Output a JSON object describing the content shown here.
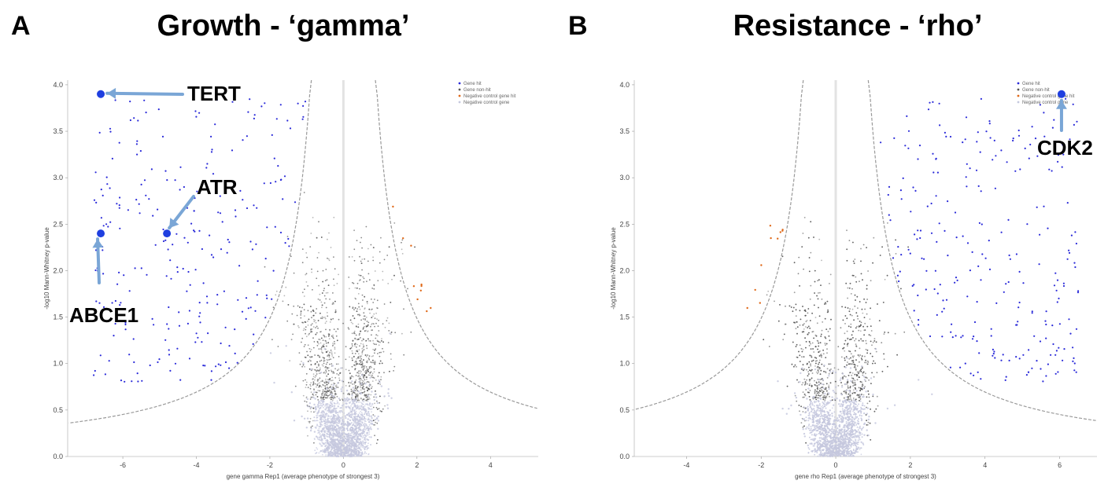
{
  "panels": [
    {
      "letter": "A",
      "title": "Growth - ‘gamma’"
    },
    {
      "letter": "B",
      "title": "Resistance - ‘rho’"
    }
  ],
  "legend_items": [
    "Gene hit",
    "Gene non-hit",
    "Negative control gene hit",
    "Negative control gene"
  ],
  "colors": {
    "hit": "#2b2bd9",
    "nonhit": "#555555",
    "neg_hit": "#e06a1a",
    "neg": "#c5c8de",
    "highlight": "#1f3fe0",
    "arrow": "#7aa6d6",
    "threshold": "#999999"
  },
  "chart_data": [
    {
      "type": "scatter",
      "title": "Growth - ‘gamma’",
      "xlabel": "gene gamma Rep1 (average phenotype of strongest 3)",
      "ylabel": "-log10 Mann-Whitney p-value",
      "xlim": [
        -7.5,
        5.3
      ],
      "ylim": [
        0,
        4.05
      ],
      "xticks": [
        "-6",
        "-4",
        "-2",
        "0",
        "2",
        "4"
      ],
      "xtick_values": [
        -6,
        -4,
        -2,
        0,
        2,
        4
      ],
      "yticks": [
        "0.0",
        "0.5",
        "1.0",
        "1.5",
        "2.0",
        "2.5",
        "3.0",
        "3.5",
        "4.0"
      ],
      "ytick_values": [
        0,
        0.5,
        1.0,
        1.5,
        2.0,
        2.5,
        3.0,
        3.5,
        4.0
      ],
      "legend_position": "top-right",
      "highlighted_genes": [
        {
          "name": "TERT",
          "x": -6.6,
          "y": 3.9
        },
        {
          "name": "ATR",
          "x": -4.8,
          "y": 2.4
        },
        {
          "name": "ABCE1",
          "x": -6.6,
          "y": 2.4
        }
      ]
    },
    {
      "type": "scatter",
      "title": "Resistance - ‘rho’",
      "xlabel": "gene rho Rep1 (average phenotype of strongest 3)",
      "ylabel": "-log10 Mann-Whitney p-value",
      "xlim": [
        -5.4,
        7.0
      ],
      "ylim": [
        0,
        4.05
      ],
      "xticks": [
        "-4",
        "-2",
        "0",
        "2",
        "4",
        "6"
      ],
      "xtick_values": [
        -4,
        -2,
        0,
        2,
        4,
        6
      ],
      "yticks": [
        "0.0",
        "0.5",
        "1.0",
        "1.5",
        "2.0",
        "2.5",
        "3.0",
        "3.5",
        "4.0"
      ],
      "ytick_values": [
        0,
        0.5,
        1.0,
        1.5,
        2.0,
        2.5,
        3.0,
        3.5,
        4.0
      ],
      "legend_position": "top-right",
      "highlighted_genes": [
        {
          "name": "CDK2",
          "x": 6.05,
          "y": 3.9
        }
      ]
    }
  ]
}
